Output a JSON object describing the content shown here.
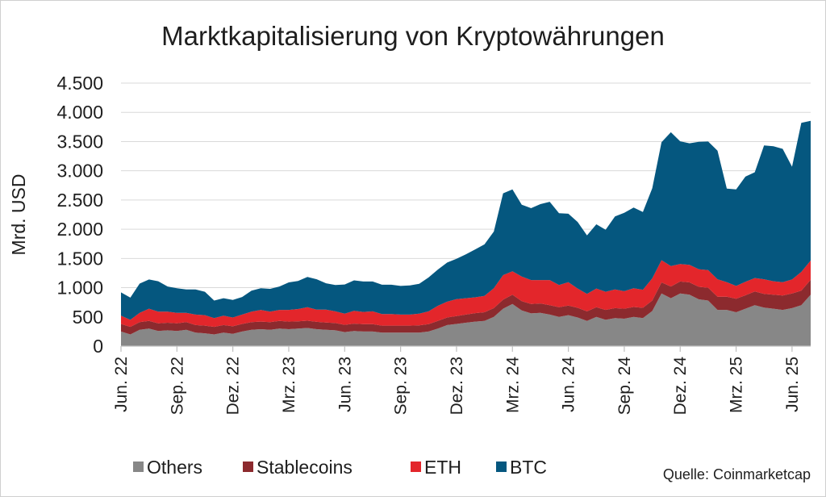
{
  "chart_data": {
    "type": "area",
    "stacked": true,
    "title": "Marktkapitalisierung von Kryptowährungen",
    "ylabel": "Mrd. USD",
    "ylim": [
      0,
      4500
    ],
    "yticks": [
      0,
      500,
      1000,
      1500,
      2000,
      2500,
      3000,
      3500,
      4000,
      4500
    ],
    "ytick_labels": [
      "0",
      "500",
      "1.000",
      "1.500",
      "2.000",
      "2.500",
      "3.000",
      "3.500",
      "4.000",
      "4.500"
    ],
    "xticks": [
      {
        "x": 0,
        "label": "Jun. 22"
      },
      {
        "x": 3,
        "label": "Sep. 22"
      },
      {
        "x": 6,
        "label": "Dez. 22"
      },
      {
        "x": 9,
        "label": "Mrz. 23"
      },
      {
        "x": 12,
        "label": "Jun. 23"
      },
      {
        "x": 15,
        "label": "Sep. 23"
      },
      {
        "x": 18,
        "label": "Dez. 23"
      },
      {
        "x": 21,
        "label": "Mrz. 24"
      },
      {
        "x": 24,
        "label": "Jun. 24"
      },
      {
        "x": 27,
        "label": "Sep. 24"
      },
      {
        "x": 30,
        "label": "Dez. 24"
      },
      {
        "x": 33,
        "label": "Mrz. 25"
      },
      {
        "x": 36,
        "label": "Jun. 25"
      }
    ],
    "x": [
      0,
      0.5,
      1,
      1.5,
      2,
      2.5,
      3,
      3.5,
      4,
      4.5,
      5,
      5.5,
      6,
      6.5,
      7,
      7.5,
      8,
      8.5,
      9,
      9.5,
      10,
      10.5,
      11,
      11.5,
      12,
      12.5,
      13,
      13.5,
      14,
      14.5,
      15,
      15.5,
      16,
      16.5,
      17,
      17.5,
      18,
      18.5,
      19,
      19.5,
      20,
      20.5,
      21,
      21.5,
      22,
      22.5,
      23,
      23.5,
      24,
      24.5,
      25,
      25.5,
      26,
      26.5,
      27,
      27.5,
      28,
      28.5,
      29,
      29.5,
      30,
      30.5,
      31,
      31.5,
      32,
      32.5,
      33,
      33.5,
      34,
      34.5,
      35,
      35.5,
      36,
      36.5,
      37
    ],
    "series": [
      {
        "name": "Others",
        "color": "#878787",
        "values": [
          250,
          200,
          280,
          300,
          260,
          270,
          260,
          280,
          230,
          220,
          200,
          230,
          210,
          250,
          280,
          290,
          280,
          300,
          290,
          300,
          310,
          290,
          280,
          270,
          240,
          260,
          250,
          250,
          230,
          230,
          230,
          230,
          230,
          250,
          300,
          360,
          380,
          400,
          420,
          430,
          500,
          640,
          720,
          610,
          560,
          570,
          540,
          500,
          530,
          490,
          430,
          500,
          450,
          480,
          470,
          500,
          480,
          600,
          900,
          820,
          900,
          880,
          800,
          780,
          620,
          620,
          580,
          640,
          700,
          660,
          640,
          620,
          650,
          700,
          880
        ]
      },
      {
        "name": "Stablecoins",
        "color": "#8c2a2e",
        "values": [
          130,
          130,
          130,
          130,
          130,
          130,
          130,
          130,
          130,
          130,
          130,
          130,
          130,
          130,
          130,
          130,
          130,
          130,
          130,
          125,
          125,
          125,
          125,
          125,
          125,
          125,
          125,
          125,
          120,
          120,
          120,
          120,
          125,
          125,
          130,
          130,
          135,
          140,
          145,
          150,
          150,
          155,
          160,
          160,
          160,
          160,
          160,
          165,
          165,
          165,
          165,
          165,
          170,
          170,
          170,
          170,
          175,
          180,
          190,
          200,
          205,
          210,
          215,
          220,
          225,
          225,
          230,
          230,
          235,
          235,
          240,
          245,
          250,
          250,
          255
        ]
      },
      {
        "name": "ETH",
        "color": "#e3262b",
        "values": [
          140,
          120,
          160,
          210,
          200,
          190,
          180,
          160,
          180,
          180,
          150,
          160,
          150,
          160,
          180,
          200,
          180,
          190,
          200,
          210,
          230,
          210,
          220,
          200,
          190,
          220,
          210,
          220,
          200,
          200,
          190,
          190,
          200,
          220,
          260,
          270,
          290,
          280,
          270,
          280,
          340,
          420,
          400,
          420,
          410,
          400,
          430,
          380,
          400,
          330,
          300,
          320,
          310,
          320,
          300,
          320,
          310,
          380,
          380,
          350,
          300,
          300,
          300,
          300,
          300,
          250,
          220,
          230,
          230,
          250,
          230,
          230,
          240,
          320,
          330
        ]
      },
      {
        "name": "BTC",
        "color": "#05577f",
        "values": [
          400,
          380,
          500,
          500,
          520,
          430,
          420,
          400,
          430,
          400,
          300,
          300,
          300,
          300,
          360,
          370,
          390,
          400,
          470,
          480,
          520,
          520,
          450,
          450,
          500,
          520,
          520,
          510,
          500,
          500,
          490,
          500,
          510,
          580,
          620,
          670,
          690,
          750,
          820,
          880,
          970,
          1400,
          1400,
          1230,
          1230,
          1300,
          1340,
          1230,
          1170,
          1140,
          1000,
          1100,
          1060,
          1250,
          1340,
          1380,
          1330,
          1540,
          2020,
          2290,
          2100,
          2080,
          2180,
          2200,
          2200,
          1600,
          1650,
          1800,
          1810,
          2290,
          2310,
          2280,
          1930,
          2550,
          2390
        ]
      }
    ],
    "legend_position": "bottom",
    "grid": true,
    "source": "Quelle: Coinmarketcap"
  }
}
